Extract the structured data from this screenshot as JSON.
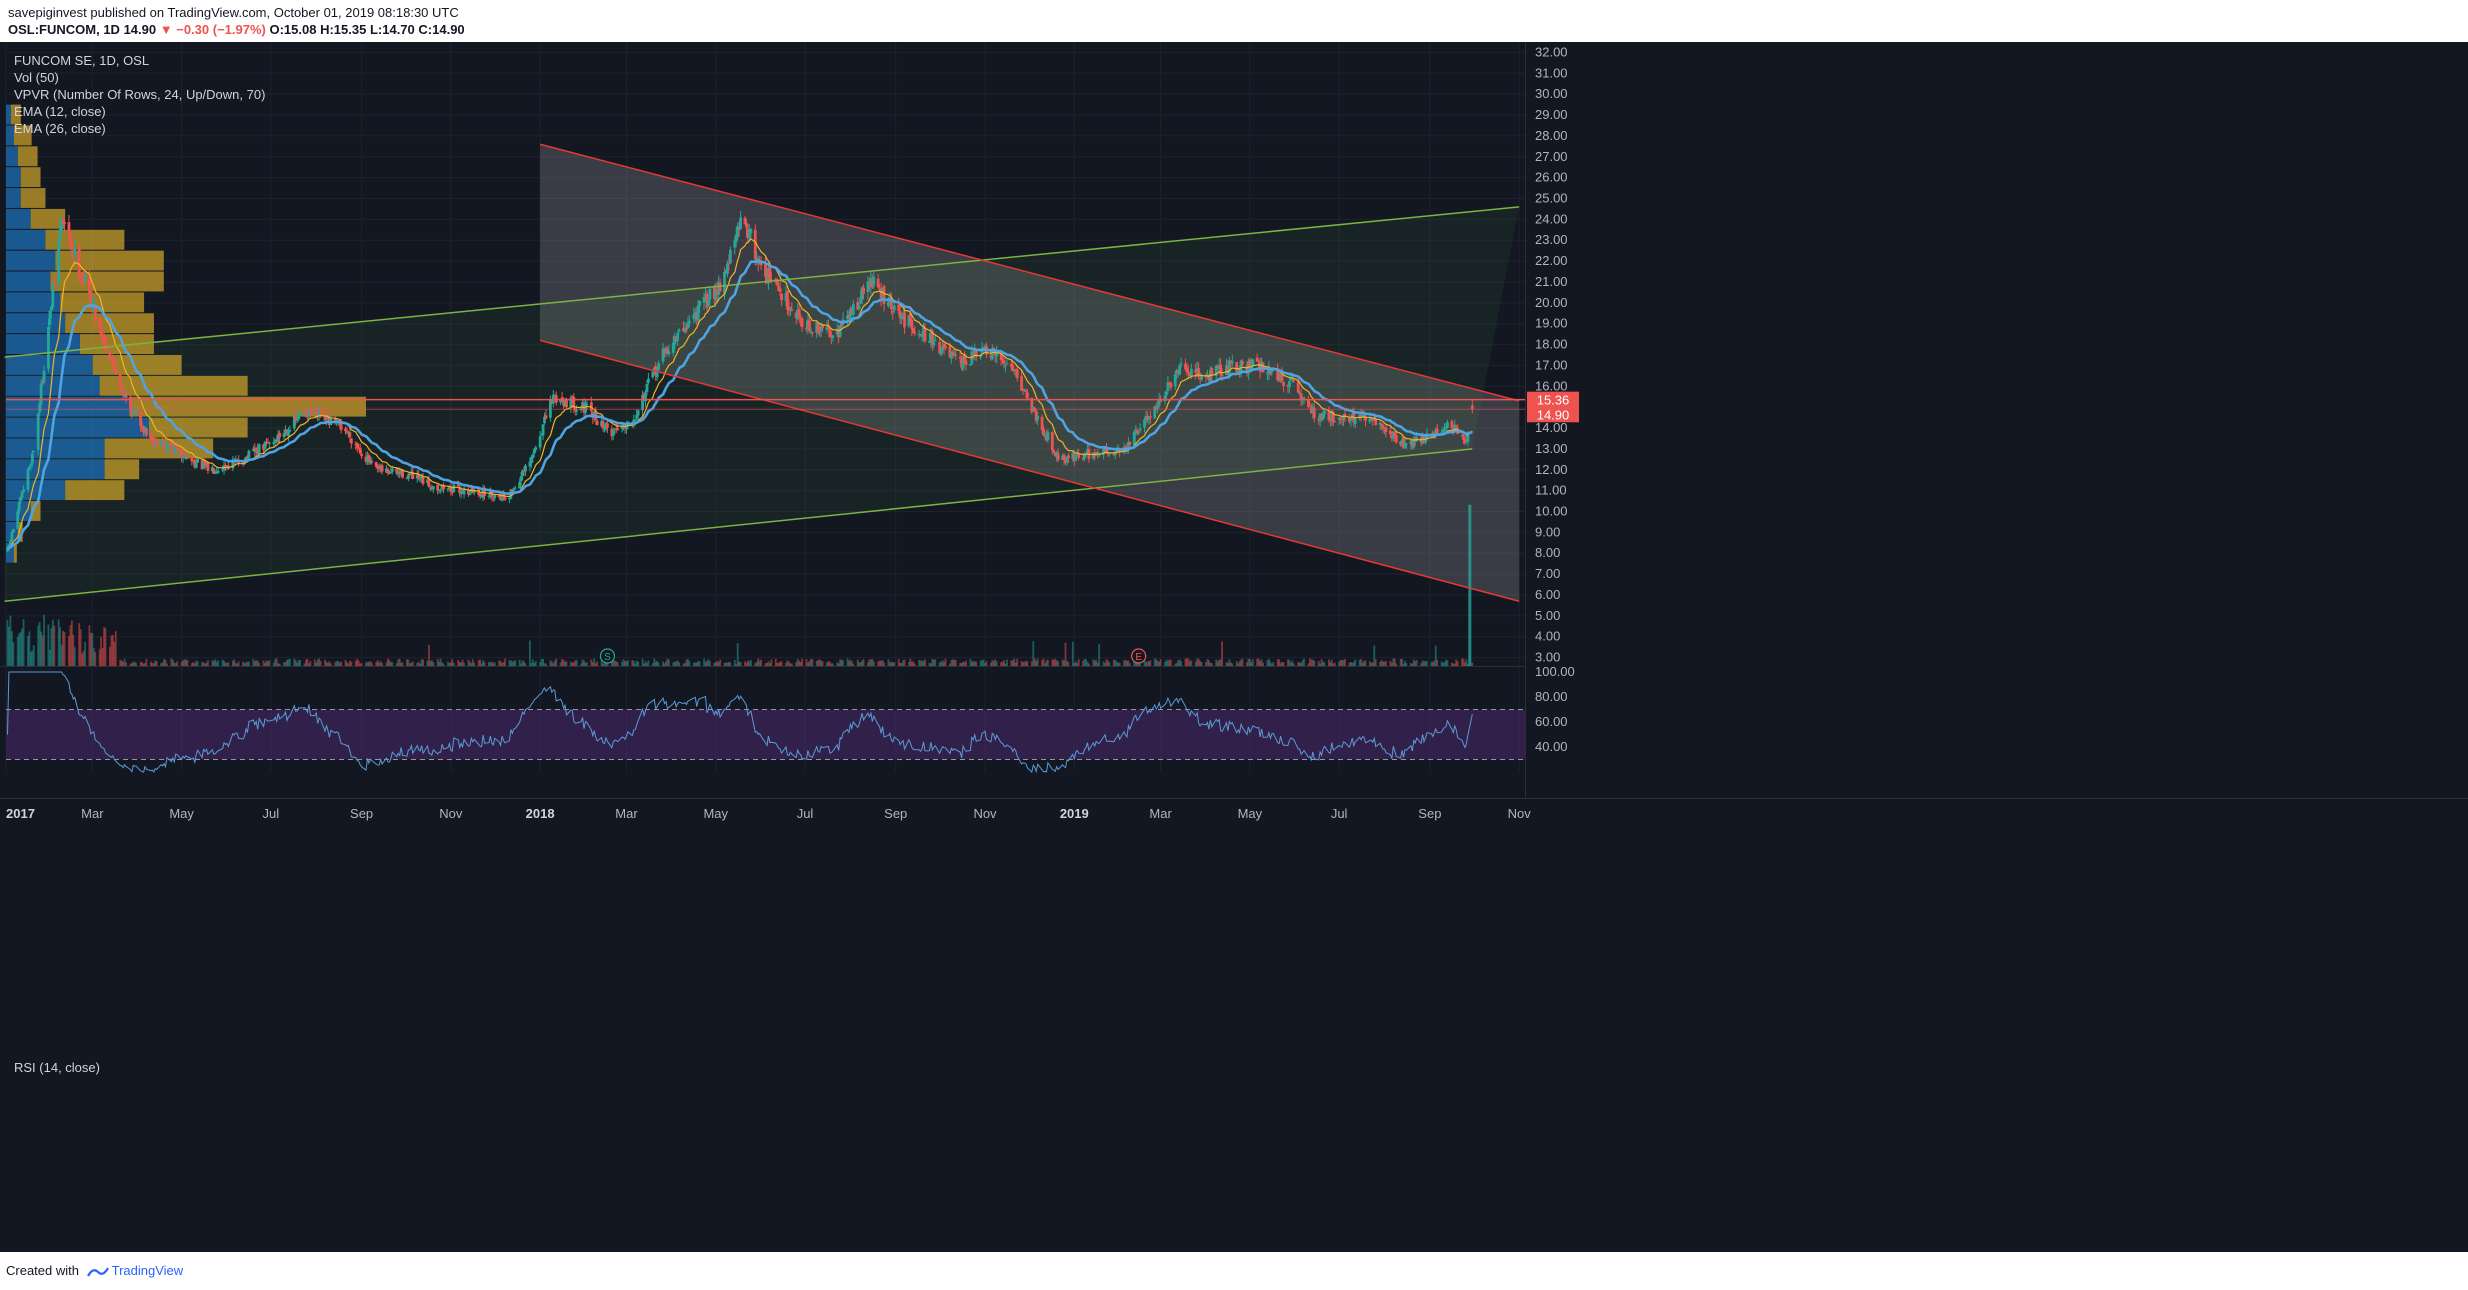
{
  "header": {
    "publisher": "savepiginvest",
    "published_text": "published on TradingView.com, October 01, 2019 08:18:30 UTC",
    "symbol": "OSL:FUNCOM, 1D",
    "last": "14.90",
    "change": "▼ −0.30 (−1.97%)",
    "open": "O:15.08",
    "high": "H:15.35",
    "low": "L:14.70",
    "close": "C:14.90"
  },
  "legend": {
    "title": "FUNCOM SE, 1D, OSL",
    "vol": "Vol (50)",
    "vpvr": "VPVR (Number Of Rows, 24, Up/Down, 70)",
    "ema12": "EMA (12, close)",
    "ema26": "EMA (26, close)"
  },
  "rsi": {
    "label": "RSI (14, close)"
  },
  "footer": {
    "created_with": "Created with",
    "brand": "TradingView"
  },
  "colors": {
    "background": "#131722",
    "up": "#26a69a",
    "down": "#ef5350",
    "ema_fast": "#f0b429",
    "ema_slow": "#4fa3e0",
    "trend_green": "#7cb342",
    "channel_red": "#e53935",
    "rsi_line": "#5b9bd5",
    "rsi_band": "#4a2a6b",
    "vpvr_blue": "#1e6fb5",
    "vpvr_gold": "#d4a82a"
  },
  "price_axis": {
    "ticks": [
      "32.00",
      "31.00",
      "30.00",
      "29.00",
      "28.00",
      "27.00",
      "26.00",
      "25.00",
      "24.00",
      "23.00",
      "22.00",
      "21.00",
      "20.00",
      "19.00",
      "18.00",
      "17.00",
      "16.00",
      "15.00",
      "14.00",
      "13.00",
      "12.00",
      "11.00",
      "10.00",
      "9.00",
      "8.00",
      "7.00",
      "6.00",
      "5.00",
      "4.00",
      "3.00"
    ],
    "label_upper": "15.36",
    "label_last": "14.90"
  },
  "rsi_axis": {
    "ticks": [
      "100.00",
      "80.00",
      "60.00",
      "40.00"
    ]
  },
  "time_axis": {
    "labels": [
      {
        "text": "2017",
        "bold": true
      },
      {
        "text": "Mar",
        "bold": false
      },
      {
        "text": "May",
        "bold": false
      },
      {
        "text": "Jul",
        "bold": false
      },
      {
        "text": "Sep",
        "bold": false
      },
      {
        "text": "Nov",
        "bold": false
      },
      {
        "text": "2018",
        "bold": true
      },
      {
        "text": "Mar",
        "bold": false
      },
      {
        "text": "May",
        "bold": false
      },
      {
        "text": "Jul",
        "bold": false
      },
      {
        "text": "Sep",
        "bold": false
      },
      {
        "text": "Nov",
        "bold": false
      },
      {
        "text": "2019",
        "bold": true
      },
      {
        "text": "Mar",
        "bold": false
      },
      {
        "text": "May",
        "bold": false
      },
      {
        "text": "Jul",
        "bold": false
      },
      {
        "text": "Sep",
        "bold": false
      },
      {
        "text": "Nov",
        "bold": false
      }
    ]
  },
  "markers": [
    {
      "label": "S",
      "date": "2018-02-16"
    },
    {
      "label": "E",
      "date": "2019-02-14"
    }
  ],
  "chart_data": {
    "type": "candlestick",
    "symbol": "OSL:FUNCOM",
    "interval": "1D",
    "price_range": [
      2.5,
      32.5
    ],
    "rsi_range": [
      20,
      100
    ],
    "rsi_levels": [
      70,
      30
    ],
    "price_keypoints": [
      [
        "2017-01-02",
        8.1
      ],
      [
        "2017-01-20",
        13.0
      ],
      [
        "2017-02-08",
        24.0
      ],
      [
        "2017-02-24",
        21.0
      ],
      [
        "2017-03-10",
        18.0
      ],
      [
        "2017-03-25",
        15.2
      ],
      [
        "2017-04-10",
        13.5
      ],
      [
        "2017-05-01",
        12.7
      ],
      [
        "2017-05-20",
        12.0
      ],
      [
        "2017-06-10",
        12.4
      ],
      [
        "2017-07-05",
        13.5
      ],
      [
        "2017-07-25",
        14.8
      ],
      [
        "2017-08-20",
        14.0
      ],
      [
        "2017-09-10",
        12.0
      ],
      [
        "2017-10-01",
        11.8
      ],
      [
        "2017-10-20",
        11.2
      ],
      [
        "2017-11-10",
        11.0
      ],
      [
        "2017-12-10",
        10.7
      ],
      [
        "2017-12-25",
        12.3
      ],
      [
        "2018-01-10",
        15.5
      ],
      [
        "2018-01-31",
        15.0
      ],
      [
        "2018-02-18",
        13.8
      ],
      [
        "2018-03-05",
        14.4
      ],
      [
        "2018-03-25",
        17.4
      ],
      [
        "2018-04-15",
        19.3
      ],
      [
        "2018-05-05",
        21.0
      ],
      [
        "2018-05-20",
        24.2
      ],
      [
        "2018-05-30",
        22.0
      ],
      [
        "2018-06-15",
        20.4
      ],
      [
        "2018-07-05",
        18.7
      ],
      [
        "2018-07-25",
        18.7
      ],
      [
        "2018-08-15",
        21.1
      ],
      [
        "2018-09-01",
        19.5
      ],
      [
        "2018-09-25",
        18.3
      ],
      [
        "2018-10-15",
        17.0
      ],
      [
        "2018-10-30",
        17.7
      ],
      [
        "2018-11-20",
        17.0
      ],
      [
        "2018-12-05",
        14.7
      ],
      [
        "2018-12-22",
        12.5
      ],
      [
        "2019-01-15",
        12.8
      ],
      [
        "2019-02-05",
        13.0
      ],
      [
        "2019-02-25",
        15.0
      ],
      [
        "2019-03-15",
        16.8
      ],
      [
        "2019-03-31",
        16.5
      ],
      [
        "2019-04-20",
        17.0
      ],
      [
        "2019-05-10",
        17.0
      ],
      [
        "2019-05-31",
        16.0
      ],
      [
        "2019-06-15",
        14.6
      ],
      [
        "2019-07-10",
        14.5
      ],
      [
        "2019-07-25",
        14.3
      ],
      [
        "2019-08-15",
        13.2
      ],
      [
        "2019-08-31",
        13.6
      ],
      [
        "2019-09-15",
        14.2
      ],
      [
        "2019-09-25",
        13.2
      ],
      [
        "2019-09-30",
        14.9
      ]
    ],
    "ohlc_last": {
      "open": 15.08,
      "high": 15.35,
      "low": 14.7,
      "close": 14.9
    },
    "volume_spike": {
      "date": "2019-09-30",
      "relative": 0.92
    },
    "horizontal_lines": [
      15.36,
      14.9
    ],
    "lines": [
      {
        "name": "upper_trend_green",
        "from": [
          "2016-12-31",
          17.4
        ],
        "to": [
          "2019-11-01",
          24.6
        ]
      },
      {
        "name": "lower_trend_green",
        "from": [
          "2016-12-31",
          5.7
        ],
        "to": [
          "2019-09-30",
          13.0
        ]
      },
      {
        "name": "channel_top_red",
        "from": [
          "2018-01-01",
          27.6
        ],
        "to": [
          "2019-11-01",
          15.3
        ]
      },
      {
        "name": "channel_bottom_red",
        "from": [
          "2018-01-01",
          18.2
        ],
        "to": [
          "2019-11-01",
          5.7
        ]
      }
    ],
    "channel_fill": {
      "from": "2018-01-01",
      "to": "2019-11-01"
    },
    "vpvr_profile": [
      {
        "price": 29.0,
        "up": 5,
        "down": 10
      },
      {
        "price": 28.0,
        "up": 8,
        "down": 18
      },
      {
        "price": 27.0,
        "up": 12,
        "down": 20
      },
      {
        "price": 26.0,
        "up": 15,
        "down": 20
      },
      {
        "price": 25.0,
        "up": 15,
        "down": 25
      },
      {
        "price": 24.0,
        "up": 25,
        "down": 35
      },
      {
        "price": 23.0,
        "up": 40,
        "down": 80
      },
      {
        "price": 22.0,
        "up": 50,
        "down": 110
      },
      {
        "price": 21.0,
        "up": 45,
        "down": 115
      },
      {
        "price": 20.0,
        "up": 55,
        "down": 85
      },
      {
        "price": 19.0,
        "up": 60,
        "down": 90
      },
      {
        "price": 18.0,
        "up": 75,
        "down": 75
      },
      {
        "price": 17.0,
        "up": 88,
        "down": 90
      },
      {
        "price": 16.0,
        "up": 95,
        "down": 150
      },
      {
        "price": 15.0,
        "up": 125,
        "down": 240
      },
      {
        "price": 14.0,
        "up": 145,
        "down": 100
      },
      {
        "price": 13.0,
        "up": 100,
        "down": 110
      },
      {
        "price": 12.0,
        "up": 100,
        "down": 35
      },
      {
        "price": 11.0,
        "up": 60,
        "down": 60
      },
      {
        "price": 10.0,
        "up": 25,
        "down": 10
      },
      {
        "price": 9.0,
        "up": 12,
        "down": 5
      },
      {
        "price": 8.0,
        "up": 8,
        "down": 3
      }
    ]
  }
}
